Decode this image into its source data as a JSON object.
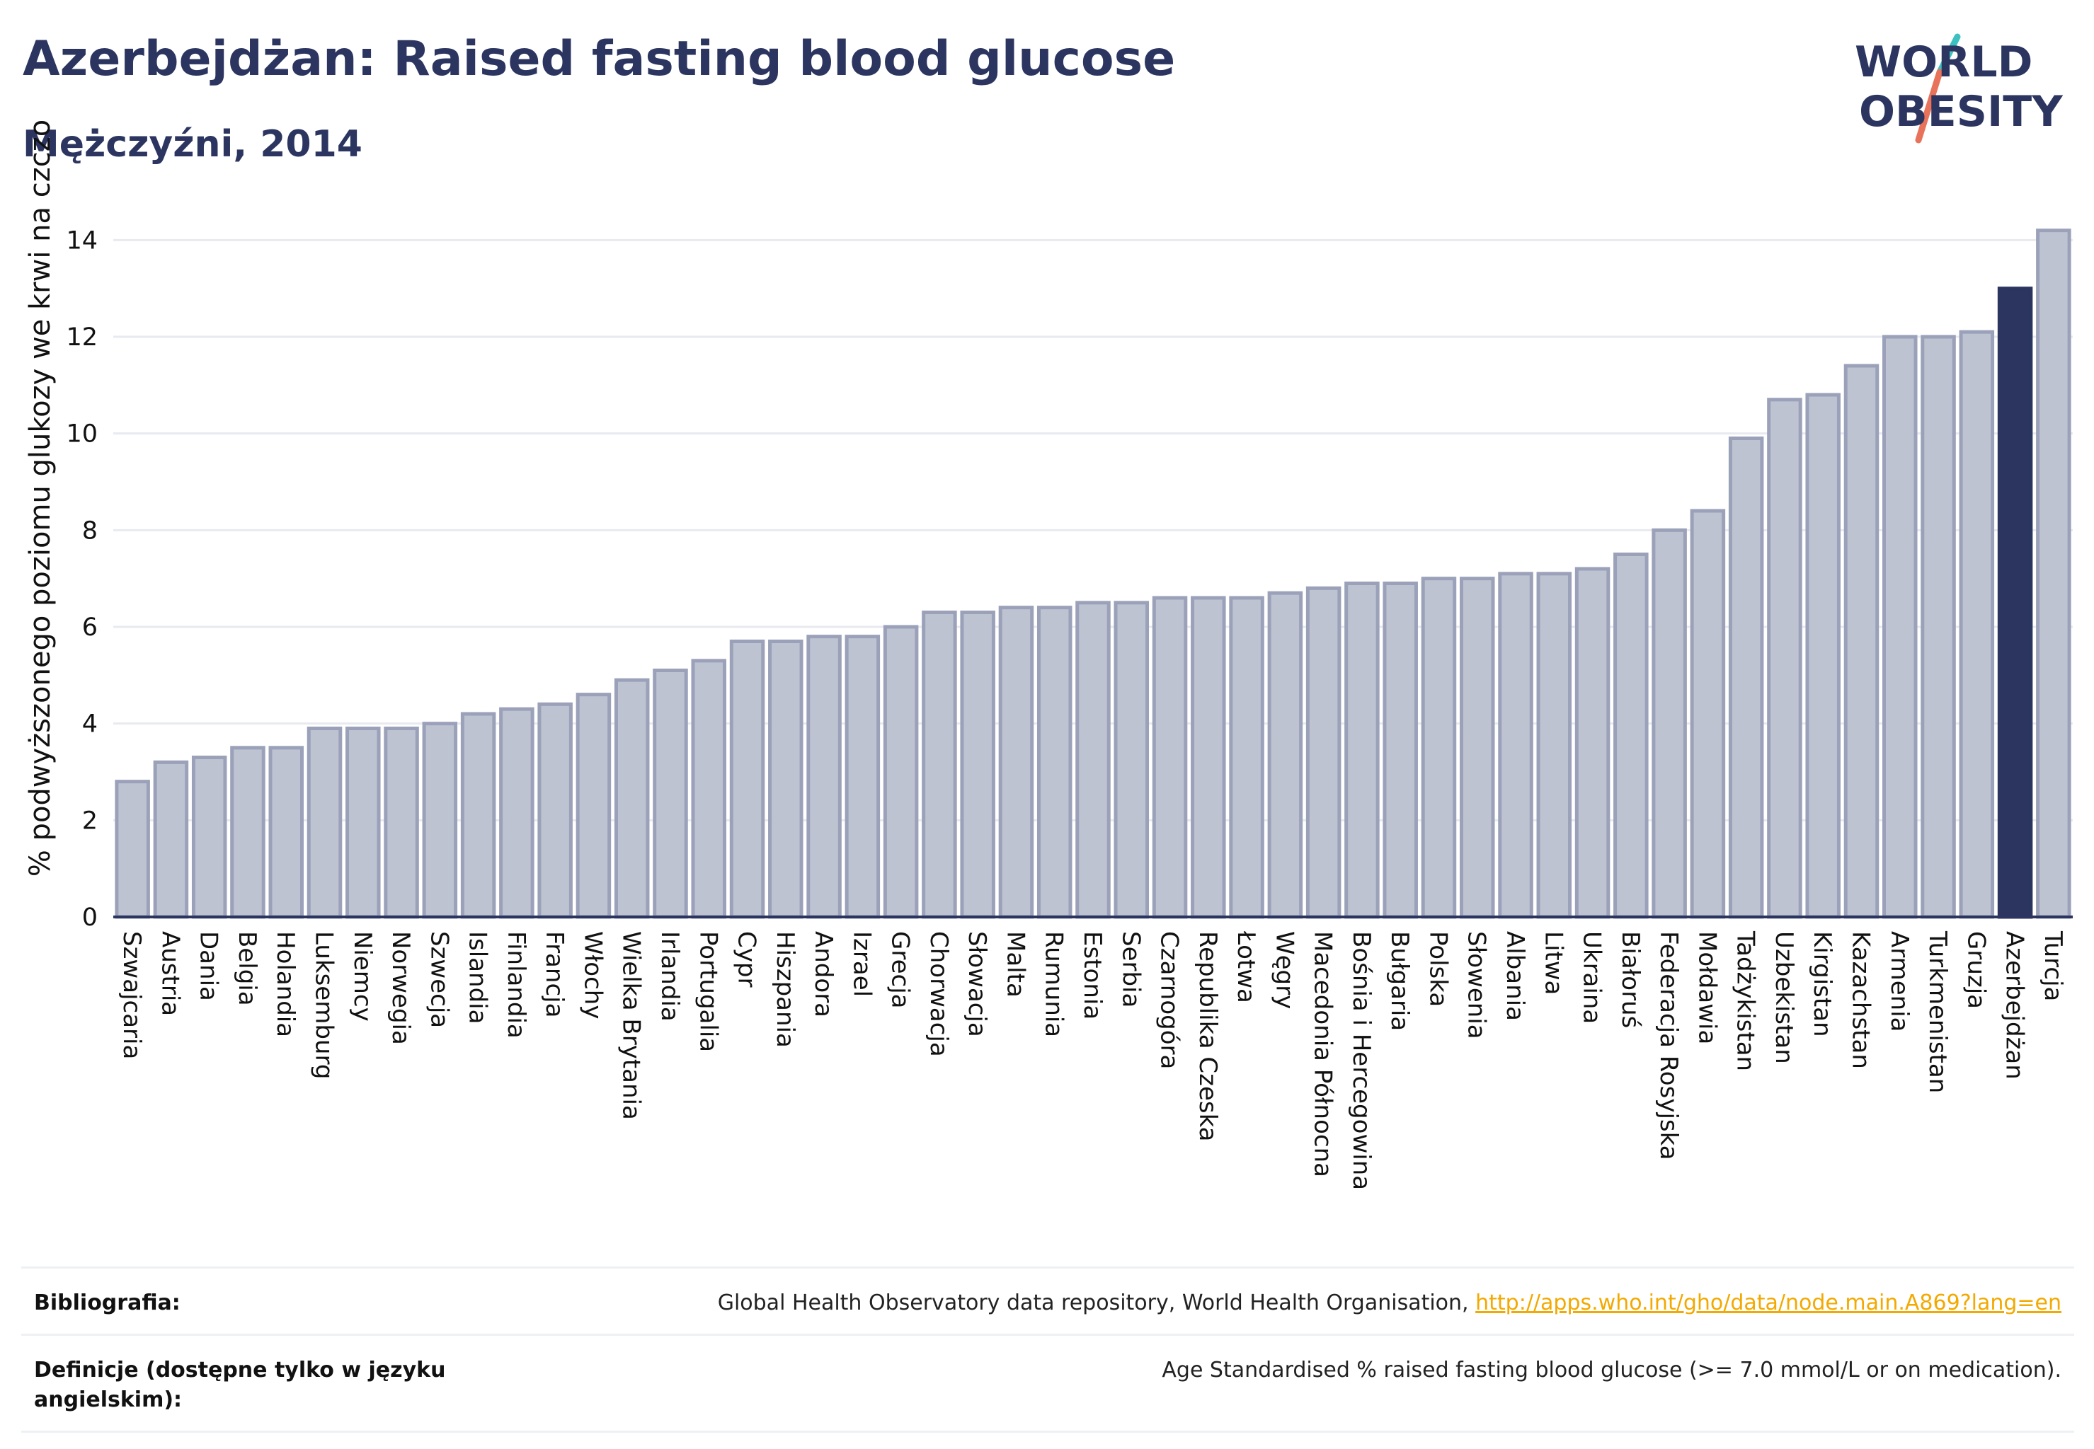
{
  "header": {
    "title": "Azerbejdżan: Raised fasting blood glucose",
    "subtitle": "Mężczyźni, 2014"
  },
  "logo": {
    "line1": "WORLD",
    "line2": "OBESITY",
    "slash_colors": [
      "#e8735a",
      "#3cc0c0"
    ],
    "text_color": "#2b3560"
  },
  "colors": {
    "bar_fill": "#bec3d2",
    "bar_stroke": "#9aa1b9",
    "highlight": "#2b3560",
    "axis": "#2b3560",
    "grid": "#e8eaf0"
  },
  "chart_data": {
    "type": "bar",
    "ylabel": "% podwyższonego poziomu glukozy we krwi na czczo",
    "xlabel": "",
    "ylim": [
      0,
      14.4
    ],
    "yticks": [
      0,
      2,
      4,
      6,
      8,
      10,
      12,
      14
    ],
    "grid": true,
    "highlight": "Azerbejdżan",
    "categories": [
      "Szwajcaria",
      "Austria",
      "Dania",
      "Belgia",
      "Holandia",
      "Luksemburg",
      "Niemcy",
      "Norwegia",
      "Szwecja",
      "Islandia",
      "Finlandia",
      "Francja",
      "Włochy",
      "Wielka Brytania",
      "Irlandia",
      "Portugalia",
      "Cypr",
      "Hiszpania",
      "Andora",
      "Izrael",
      "Grecja",
      "Chorwacja",
      "Słowacja",
      "Malta",
      "Rumunia",
      "Estonia",
      "Serbia",
      "Czarnogóra",
      "Republika Czeska",
      "Łotwa",
      "Węgry",
      "Macedonia Północna",
      "Bośnia i Hercegowina",
      "Bułgaria",
      "Polska",
      "Słowenia",
      "Albania",
      "Litwa",
      "Ukraina",
      "Białoruś",
      "Federacja Rosyjska",
      "Mołdawia",
      "Tadżykistan",
      "Uzbekistan",
      "Kirgistan",
      "Kazachstan",
      "Armenia",
      "Turkmenistan",
      "Gruzja",
      "Azerbejdżan",
      "Turcja"
    ],
    "values": [
      2.8,
      3.2,
      3.3,
      3.5,
      3.5,
      3.9,
      3.9,
      3.9,
      4.0,
      4.2,
      4.3,
      4.4,
      4.6,
      4.9,
      5.1,
      5.3,
      5.7,
      5.7,
      5.8,
      5.8,
      6.0,
      6.3,
      6.3,
      6.4,
      6.4,
      6.5,
      6.5,
      6.6,
      6.6,
      6.6,
      6.7,
      6.8,
      6.9,
      6.9,
      7.0,
      7.0,
      7.1,
      7.1,
      7.2,
      7.5,
      8.0,
      8.4,
      9.9,
      10.7,
      10.8,
      11.4,
      12.0,
      12.0,
      12.1,
      13.0,
      14.2
    ]
  },
  "footer": {
    "bibliography_label": "Bibliografia:",
    "bibliography_text": "Global Health Observatory data repository, World Health Organisation,",
    "bibliography_link": "http://apps.who.int/gho/data/node.main.A869?lang=en",
    "definitions_label": "Definicje (dostępne tylko w języku angielskim):",
    "definitions_text": "Age Standardised % raised fasting blood glucose (>= 7.0 mmol/L or on medication)."
  }
}
